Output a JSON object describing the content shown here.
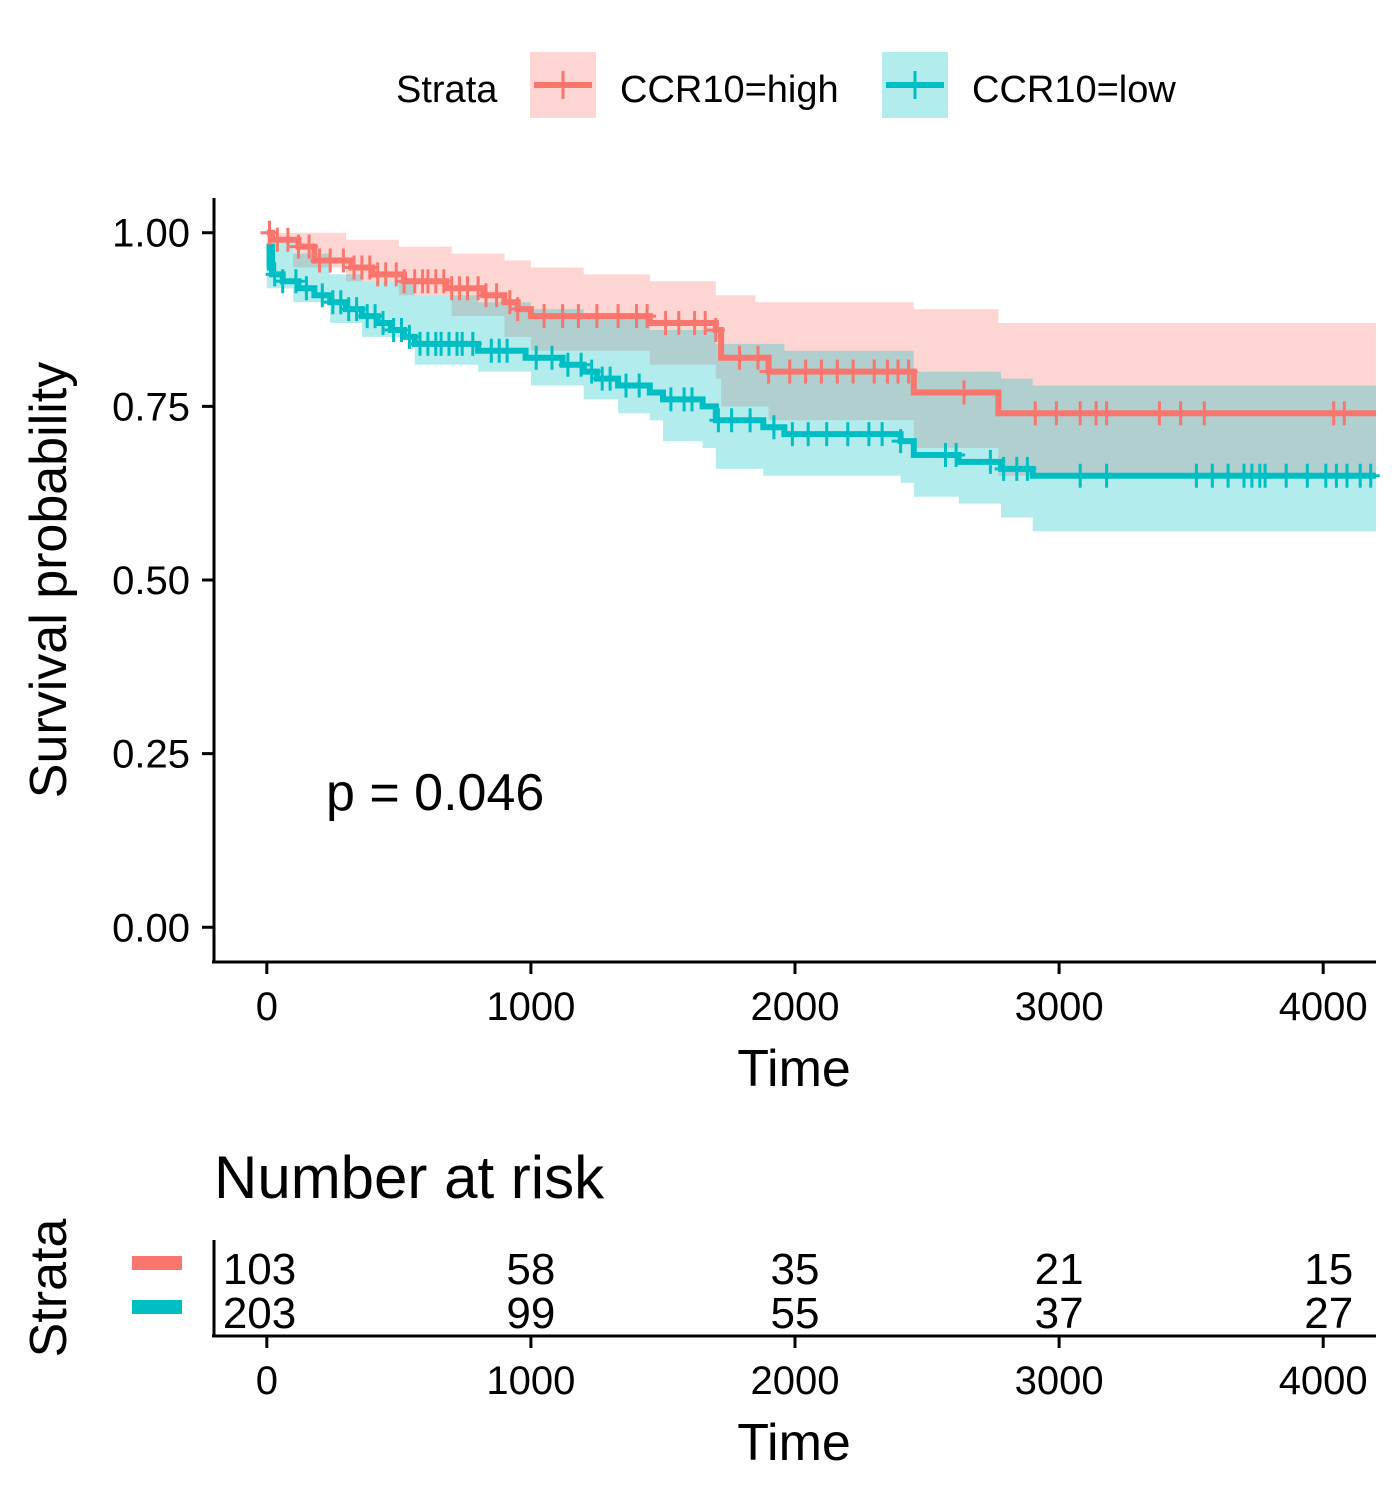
{
  "chart_data": [
    {
      "type": "line",
      "subtype": "kaplan-meier",
      "title": "",
      "xlabel": "Time",
      "ylabel": "Survival probability",
      "xlim": [
        -200,
        4200
      ],
      "ylim": [
        -0.05,
        1.05
      ],
      "x_ticks": [
        0,
        1000,
        2000,
        3000,
        4000
      ],
      "y_ticks": [
        0.0,
        0.25,
        0.5,
        0.75,
        1.0
      ],
      "y_tick_labels": [
        "0.00",
        "0.25",
        "0.50",
        "0.75",
        "1.00"
      ],
      "grid": false,
      "legend": {
        "title": "Strata",
        "position": "top"
      },
      "annotation": "p = 0.046",
      "series": [
        {
          "name": "CCR10=high",
          "color": "#F8766D",
          "band_color": "#FDD4D0",
          "steps": [
            [
              0,
              1.0
            ],
            [
              20,
              0.99
            ],
            [
              120,
              0.98
            ],
            [
              180,
              0.96
            ],
            [
              320,
              0.95
            ],
            [
              400,
              0.94
            ],
            [
              520,
              0.93
            ],
            [
              680,
              0.92
            ],
            [
              820,
              0.91
            ],
            [
              900,
              0.9
            ],
            [
              950,
              0.89
            ],
            [
              1000,
              0.88
            ],
            [
              1450,
              0.87
            ],
            [
              1700,
              0.86
            ],
            [
              1720,
              0.82
            ],
            [
              1900,
              0.8
            ],
            [
              2450,
              0.77
            ],
            [
              2770,
              0.74
            ],
            [
              4200,
              0.74
            ]
          ],
          "upper": [
            [
              0,
              1.0
            ],
            [
              120,
              1.0
            ],
            [
              300,
              0.99
            ],
            [
              500,
              0.98
            ],
            [
              700,
              0.97
            ],
            [
              900,
              0.96
            ],
            [
              1000,
              0.95
            ],
            [
              1200,
              0.94
            ],
            [
              1450,
              0.93
            ],
            [
              1700,
              0.91
            ],
            [
              1850,
              0.9
            ],
            [
              2450,
              0.89
            ],
            [
              2770,
              0.87
            ],
            [
              4200,
              0.87
            ]
          ],
          "lower": [
            [
              0,
              0.99
            ],
            [
              100,
              0.95
            ],
            [
              300,
              0.93
            ],
            [
              500,
              0.91
            ],
            [
              700,
              0.88
            ],
            [
              900,
              0.85
            ],
            [
              1000,
              0.83
            ],
            [
              1450,
              0.81
            ],
            [
              1700,
              0.79
            ],
            [
              1720,
              0.75
            ],
            [
              1900,
              0.73
            ],
            [
              2450,
              0.69
            ],
            [
              2770,
              0.65
            ],
            [
              4200,
              0.65
            ]
          ],
          "censor_times": [
            10,
            40,
            80,
            120,
            160,
            200,
            240,
            290,
            330,
            360,
            390,
            420,
            450,
            490,
            520,
            560,
            590,
            610,
            640,
            670,
            700,
            730,
            760,
            800,
            830,
            870,
            920,
            950,
            1050,
            1120,
            1180,
            1250,
            1330,
            1400,
            1440,
            1510,
            1560,
            1620,
            1660,
            1700,
            1790,
            1860,
            1900,
            1980,
            2040,
            2100,
            2160,
            2220,
            2300,
            2350,
            2390,
            2430,
            2640,
            2910,
            2990,
            3080,
            3140,
            3180,
            3380,
            3460,
            3550,
            4040,
            4080
          ]
        },
        {
          "name": "CCR10=low",
          "color": "#00BFC4",
          "band_color": "#B3EAEC",
          "steps": [
            [
              0,
              0.95
            ],
            [
              10,
              0.98
            ],
            [
              20,
              0.94
            ],
            [
              60,
              0.93
            ],
            [
              120,
              0.92
            ],
            [
              180,
              0.91
            ],
            [
              240,
              0.9
            ],
            [
              300,
              0.89
            ],
            [
              360,
              0.88
            ],
            [
              420,
              0.87
            ],
            [
              470,
              0.86
            ],
            [
              520,
              0.85
            ],
            [
              560,
              0.84
            ],
            [
              800,
              0.83
            ],
            [
              980,
              0.82
            ],
            [
              1120,
              0.81
            ],
            [
              1200,
              0.8
            ],
            [
              1250,
              0.79
            ],
            [
              1330,
              0.78
            ],
            [
              1450,
              0.77
            ],
            [
              1500,
              0.76
            ],
            [
              1650,
              0.75
            ],
            [
              1700,
              0.73
            ],
            [
              1880,
              0.72
            ],
            [
              1960,
              0.71
            ],
            [
              2400,
              0.7
            ],
            [
              2450,
              0.68
            ],
            [
              2620,
              0.67
            ],
            [
              2780,
              0.66
            ],
            [
              2900,
              0.65
            ],
            [
              4200,
              0.65
            ]
          ],
          "upper": [
            [
              0,
              0.99
            ],
            [
              100,
              0.97
            ],
            [
              240,
              0.94
            ],
            [
              360,
              0.93
            ],
            [
              560,
              0.91
            ],
            [
              800,
              0.9
            ],
            [
              1000,
              0.89
            ],
            [
              1200,
              0.88
            ],
            [
              1450,
              0.86
            ],
            [
              1700,
              0.84
            ],
            [
              1960,
              0.83
            ],
            [
              2450,
              0.8
            ],
            [
              2780,
              0.79
            ],
            [
              2900,
              0.78
            ],
            [
              4200,
              0.78
            ]
          ],
          "lower": [
            [
              0,
              0.92
            ],
            [
              100,
              0.9
            ],
            [
              240,
              0.87
            ],
            [
              360,
              0.85
            ],
            [
              560,
              0.81
            ],
            [
              800,
              0.8
            ],
            [
              1000,
              0.78
            ],
            [
              1200,
              0.76
            ],
            [
              1330,
              0.74
            ],
            [
              1450,
              0.73
            ],
            [
              1500,
              0.7
            ],
            [
              1650,
              0.69
            ],
            [
              1700,
              0.66
            ],
            [
              1880,
              0.65
            ],
            [
              2400,
              0.64
            ],
            [
              2450,
              0.62
            ],
            [
              2620,
              0.61
            ],
            [
              2780,
              0.59
            ],
            [
              2900,
              0.57
            ],
            [
              4200,
              0.57
            ]
          ],
          "censor_times": [
            30,
            60,
            110,
            150,
            210,
            250,
            280,
            310,
            340,
            380,
            410,
            440,
            480,
            510,
            540,
            580,
            610,
            640,
            660,
            690,
            720,
            740,
            780,
            850,
            880,
            910,
            1020,
            1080,
            1140,
            1190,
            1230,
            1270,
            1300,
            1360,
            1410,
            1530,
            1580,
            1610,
            1710,
            1760,
            1830,
            1920,
            1990,
            2050,
            2120,
            2200,
            2280,
            2330,
            2400,
            2570,
            2610,
            2740,
            2790,
            2840,
            2880,
            3080,
            3180,
            3520,
            3580,
            3640,
            3700,
            3730,
            3760,
            3780,
            3860,
            3940,
            4010,
            4050,
            4090,
            4140,
            4180
          ]
        }
      ]
    },
    {
      "type": "table",
      "title": "Number at risk",
      "xlabel": "Time",
      "ylabel": "Strata",
      "x": [
        0,
        1000,
        2000,
        3000,
        4000
      ],
      "series": [
        {
          "name": "CCR10=high",
          "color": "#F8766D",
          "values": [
            103,
            58,
            35,
            21,
            15
          ]
        },
        {
          "name": "CCR10=low",
          "color": "#00BFC4",
          "values": [
            203,
            99,
            55,
            37,
            27
          ]
        }
      ]
    }
  ]
}
